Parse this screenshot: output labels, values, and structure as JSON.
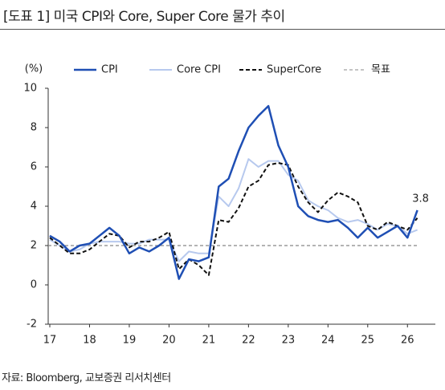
{
  "header": {
    "title": "[도표 1] 미국 CPI와 Core, Super Core 물가 추이"
  },
  "chart_data": {
    "type": "line",
    "y_unit": "(%)",
    "x": [
      17,
      17.25,
      17.5,
      17.75,
      18,
      18.25,
      18.5,
      18.75,
      19,
      19.25,
      19.5,
      19.75,
      20,
      20.25,
      20.5,
      20.75,
      21,
      21.25,
      21.5,
      21.75,
      22,
      22.25,
      22.5,
      22.75,
      23,
      23.25,
      23.5,
      23.75,
      24,
      24.25,
      24.5,
      24.75,
      25,
      25.25,
      25.5,
      25.75,
      26,
      26.25
    ],
    "series": [
      {
        "name": "CPI",
        "color": "#1f4fb4",
        "dash": false,
        "values": [
          2.5,
          2.2,
          1.7,
          2.0,
          2.1,
          2.5,
          2.9,
          2.5,
          1.6,
          1.9,
          1.7,
          2.0,
          2.4,
          0.3,
          1.3,
          1.2,
          1.4,
          5.0,
          5.4,
          6.8,
          8.0,
          8.6,
          9.1,
          7.1,
          6.0,
          4.0,
          3.5,
          3.3,
          3.2,
          3.3,
          2.9,
          2.4,
          2.9,
          2.4,
          2.7,
          3.0,
          2.4,
          3.8
        ],
        "end_label": "3.8"
      },
      {
        "name": "Core CPI",
        "color": "#b7c9ee",
        "dash": false,
        "values": [
          2.3,
          2.0,
          1.7,
          1.8,
          2.1,
          2.2,
          2.2,
          2.2,
          2.1,
          2.1,
          2.3,
          2.3,
          2.3,
          1.2,
          1.7,
          1.6,
          1.6,
          4.5,
          4.0,
          4.9,
          6.4,
          6.0,
          6.3,
          6.3,
          5.6,
          5.3,
          4.3,
          4.0,
          3.8,
          3.4,
          3.2,
          3.3,
          3.1,
          2.8,
          3.1,
          3.0,
          2.6,
          2.8
        ]
      },
      {
        "name": "SuperCore",
        "color": "#111111",
        "dash": true,
        "values": [
          2.4,
          2.0,
          1.6,
          1.6,
          1.8,
          2.2,
          2.6,
          2.5,
          1.9,
          2.2,
          2.2,
          2.4,
          2.7,
          0.8,
          1.3,
          1.0,
          0.5,
          3.3,
          3.2,
          3.9,
          5.0,
          5.3,
          6.1,
          6.2,
          6.1,
          5.0,
          4.2,
          3.7,
          4.3,
          4.7,
          4.5,
          4.2,
          3.0,
          2.8,
          3.2,
          3.0,
          2.8,
          3.4
        ]
      }
    ],
    "target": {
      "name": "목표",
      "value": 2,
      "color": "#888888"
    },
    "xlim": [
      17,
      26.5
    ],
    "xticks": [
      17,
      18,
      19,
      20,
      21,
      22,
      23,
      24,
      25,
      26
    ],
    "ylim": [
      -2,
      10
    ],
    "yticks": [
      -2,
      0,
      2,
      4,
      6,
      8,
      10
    ],
    "grid": false
  },
  "footer": {
    "source": "자료: Bloomberg, 교보증권 리서치센터"
  }
}
